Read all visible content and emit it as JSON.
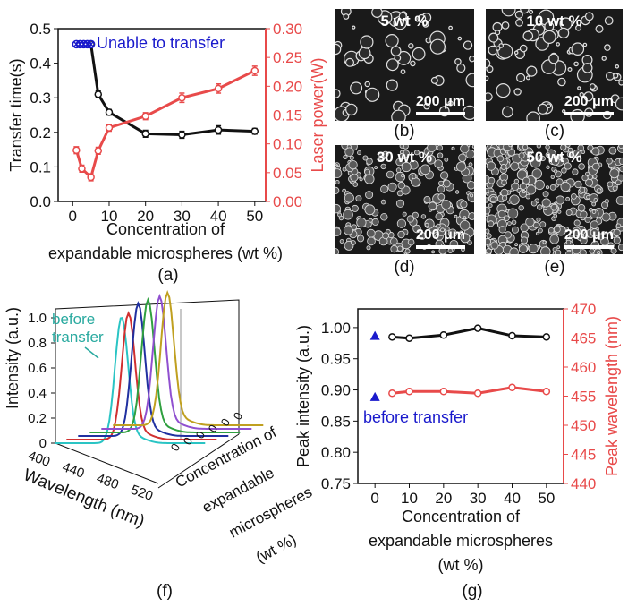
{
  "panels": {
    "a": "(a)",
    "b": "(b)",
    "c": "(c)",
    "d": "(d)",
    "e": "(e)",
    "f": "(f)",
    "g": "(g)"
  },
  "colors": {
    "black": "#111111",
    "red": "#e84a4a",
    "blue": "#1a1acc",
    "teal": "#2aaaa0"
  },
  "chart_data": [
    {
      "id": "a",
      "type": "line",
      "xlabel_lines": [
        "Concentration of",
        "expandable microspheres (wt %)"
      ],
      "ylabel_left": "Transfer time(s)",
      "ylabel_right": "Laser power(W)",
      "xticks": [
        "0",
        "10",
        "20",
        "30",
        "40",
        "50"
      ],
      "yticks_left": [
        "0.0",
        "0.1",
        "0.2",
        "0.3",
        "0.4",
        "0.5"
      ],
      "yticks_right": [
        "0.00",
        "0.05",
        "0.10",
        "0.15",
        "0.20",
        "0.25",
        "0.30"
      ],
      "xlim": [
        -4,
        53
      ],
      "ylim_left": [
        0,
        0.5
      ],
      "ylim_right": [
        0,
        0.3
      ],
      "annotation": "Unable to transfer",
      "series": [
        {
          "axis": "left",
          "color": "#111111",
          "x": [
            5,
            7,
            10,
            20,
            30,
            40,
            50
          ],
          "y": [
            0.455,
            0.31,
            0.258,
            0.196,
            0.193,
            0.207,
            0.203
          ],
          "err": [
            0.008,
            0.01,
            0.008,
            0.01,
            0.01,
            0.012,
            0.008
          ]
        },
        {
          "axis": "left",
          "color": "#1a1acc",
          "marker": "x",
          "x": [
            1,
            2,
            3,
            4,
            5
          ],
          "y": [
            0.455,
            0.455,
            0.455,
            0.455,
            0.455
          ]
        },
        {
          "axis": "right",
          "color": "#e84a4a",
          "x": [
            1,
            2.5,
            5,
            7,
            10,
            20,
            30,
            40,
            50
          ],
          "y": [
            0.089,
            0.057,
            0.042,
            0.088,
            0.128,
            0.148,
            0.18,
            0.196,
            0.227
          ],
          "err": [
            0.006,
            0.006,
            0.006,
            0.006,
            0.006,
            0.006,
            0.008,
            0.008,
            0.008
          ]
        }
      ]
    },
    {
      "id": "f",
      "type": "line",
      "xlabel": "Wavelength (nm)",
      "ylabel": "Intensity (a.u.)",
      "zlabel_lines": [
        "Concentration of",
        "expandable",
        "microspheres",
        "(wt %)"
      ],
      "xticks": [
        "400",
        "440",
        "480",
        "520"
      ],
      "yticks": [
        "0",
        "0.2",
        "0.4",
        "0.6",
        "0.8",
        "1.0"
      ],
      "annotation_lines": [
        "before",
        "transfer"
      ],
      "series": [
        {
          "name": "before transfer",
          "color": "#2ac4c4",
          "peak": 471,
          "height": 1.0
        },
        {
          "name": "0",
          "color": "#d03030",
          "peak": 466,
          "height": 1.0
        },
        {
          "name": "5",
          "color": "#2030a0",
          "peak": 464,
          "height": 1.05
        },
        {
          "name": "10",
          "color": "#30a040",
          "peak": 462,
          "height": 1.05
        },
        {
          "name": "20",
          "color": "#9050d0",
          "peak": 462,
          "height": 1.05
        },
        {
          "name": "50",
          "color": "#c0a020",
          "peak": 458,
          "height": 1.05
        }
      ]
    },
    {
      "id": "g",
      "type": "line",
      "xlabel_lines": [
        "Concentration of",
        "expandable microspheres",
        "(wt %)"
      ],
      "ylabel_left": "Peak intensity (a.u.)",
      "ylabel_right": "Peak wavelength (nm)",
      "xticks": [
        "0",
        "10",
        "20",
        "30",
        "40",
        "50"
      ],
      "yticks_left": [
        "0.75",
        "0.80",
        "0.85",
        "0.90",
        "0.95",
        "1.00"
      ],
      "yticks_right": [
        "440",
        "445",
        "450",
        "455",
        "460",
        "465",
        "470"
      ],
      "xlim": [
        -5,
        55
      ],
      "ylim_left": [
        0.75,
        1.03
      ],
      "ylim_right": [
        440,
        470
      ],
      "annotation": "before transfer",
      "series": [
        {
          "axis": "left",
          "color": "#111111",
          "x": [
            5,
            10,
            20,
            30,
            40,
            50
          ],
          "y": [
            0.985,
            0.983,
            0.988,
            0.999,
            0.987,
            0.985
          ]
        },
        {
          "axis": "right",
          "color": "#e84a4a",
          "x": [
            5,
            10,
            20,
            30,
            40,
            50
          ],
          "y": [
            455.5,
            455.8,
            455.8,
            455.5,
            456.5,
            455.8
          ]
        },
        {
          "axis": "left",
          "color": "#1a1acc",
          "marker": "triangle",
          "x": [
            0,
            0
          ],
          "y": [
            0.986,
            0.888
          ]
        }
      ]
    }
  ],
  "images": [
    {
      "id": "b",
      "label": "5 wt %",
      "scale": "200 μm"
    },
    {
      "id": "c",
      "label": "10 wt %",
      "scale": "200 μm"
    },
    {
      "id": "d",
      "label": "30 wt %",
      "scale": "200 μm"
    },
    {
      "id": "e",
      "label": "50 wt %",
      "scale": "200 μm"
    }
  ]
}
